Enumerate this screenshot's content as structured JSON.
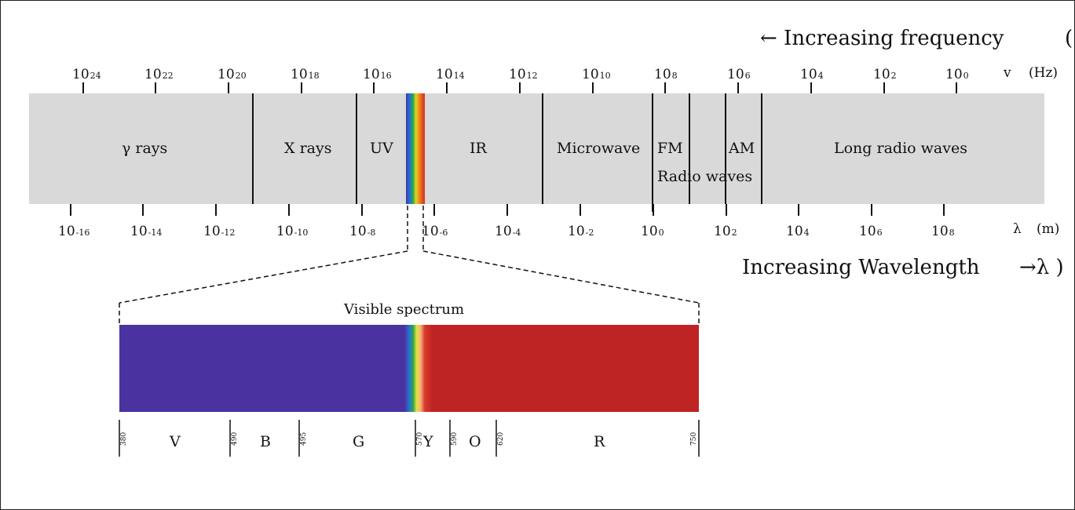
{
  "title_frequency": "← Increasing frequency",
  "title_frequency_tail": "(",
  "title_wavelength": "Increasing Wavelength",
  "title_wavelength_tail": "→λ )",
  "frequency_axis": {
    "unit_symbol": "v",
    "unit": "(Hz)",
    "ticks": [
      {
        "base": "10",
        "exp": "24"
      },
      {
        "base": "10",
        "exp": "22"
      },
      {
        "base": "10",
        "exp": "20"
      },
      {
        "base": "10",
        "exp": "18"
      },
      {
        "base": "10",
        "exp": "16"
      },
      {
        "base": "10",
        "exp": "14"
      },
      {
        "base": "10",
        "exp": "12"
      },
      {
        "base": "10",
        "exp": "10"
      },
      {
        "base": "10",
        "exp": "8"
      },
      {
        "base": "10",
        "exp": "6"
      },
      {
        "base": "10",
        "exp": "4"
      },
      {
        "base": "10",
        "exp": "2"
      },
      {
        "base": "10",
        "exp": "0"
      }
    ]
  },
  "wavelength_axis": {
    "unit_symbol": "λ",
    "unit": "(m)",
    "ticks": [
      {
        "base": "10",
        "exp": "-16"
      },
      {
        "base": "10",
        "exp": "-14"
      },
      {
        "base": "10",
        "exp": "-12"
      },
      {
        "base": "10",
        "exp": "-10"
      },
      {
        "base": "10",
        "exp": "-8"
      },
      {
        "base": "10",
        "exp": "-6"
      },
      {
        "base": "10",
        "exp": "-4"
      },
      {
        "base": "10",
        "exp": "-2"
      },
      {
        "base": "10",
        "exp": "0"
      },
      {
        "base": "10",
        "exp": "2"
      },
      {
        "base": "10",
        "exp": "4"
      },
      {
        "base": "10",
        "exp": "6"
      },
      {
        "base": "10",
        "exp": "8"
      }
    ]
  },
  "bands": {
    "gamma": "γ  rays",
    "xray": "X rays",
    "uv": "UV",
    "ir": "IR",
    "microwave": "Microwave",
    "fm": "FM",
    "am": "AM",
    "radio": "Radio waves",
    "long_radio": "Long radio waves"
  },
  "visible": {
    "title": "Visible spectrum",
    "boundaries_nm": [
      "380",
      "490",
      "495",
      "570",
      "590",
      "620",
      "750"
    ],
    "colors": [
      "V",
      "B",
      "G",
      "Y",
      "O",
      "R"
    ]
  },
  "palette": {
    "band_fill": "#d9d9d9",
    "violet": "#4a32a0",
    "red": "#bf2424"
  }
}
